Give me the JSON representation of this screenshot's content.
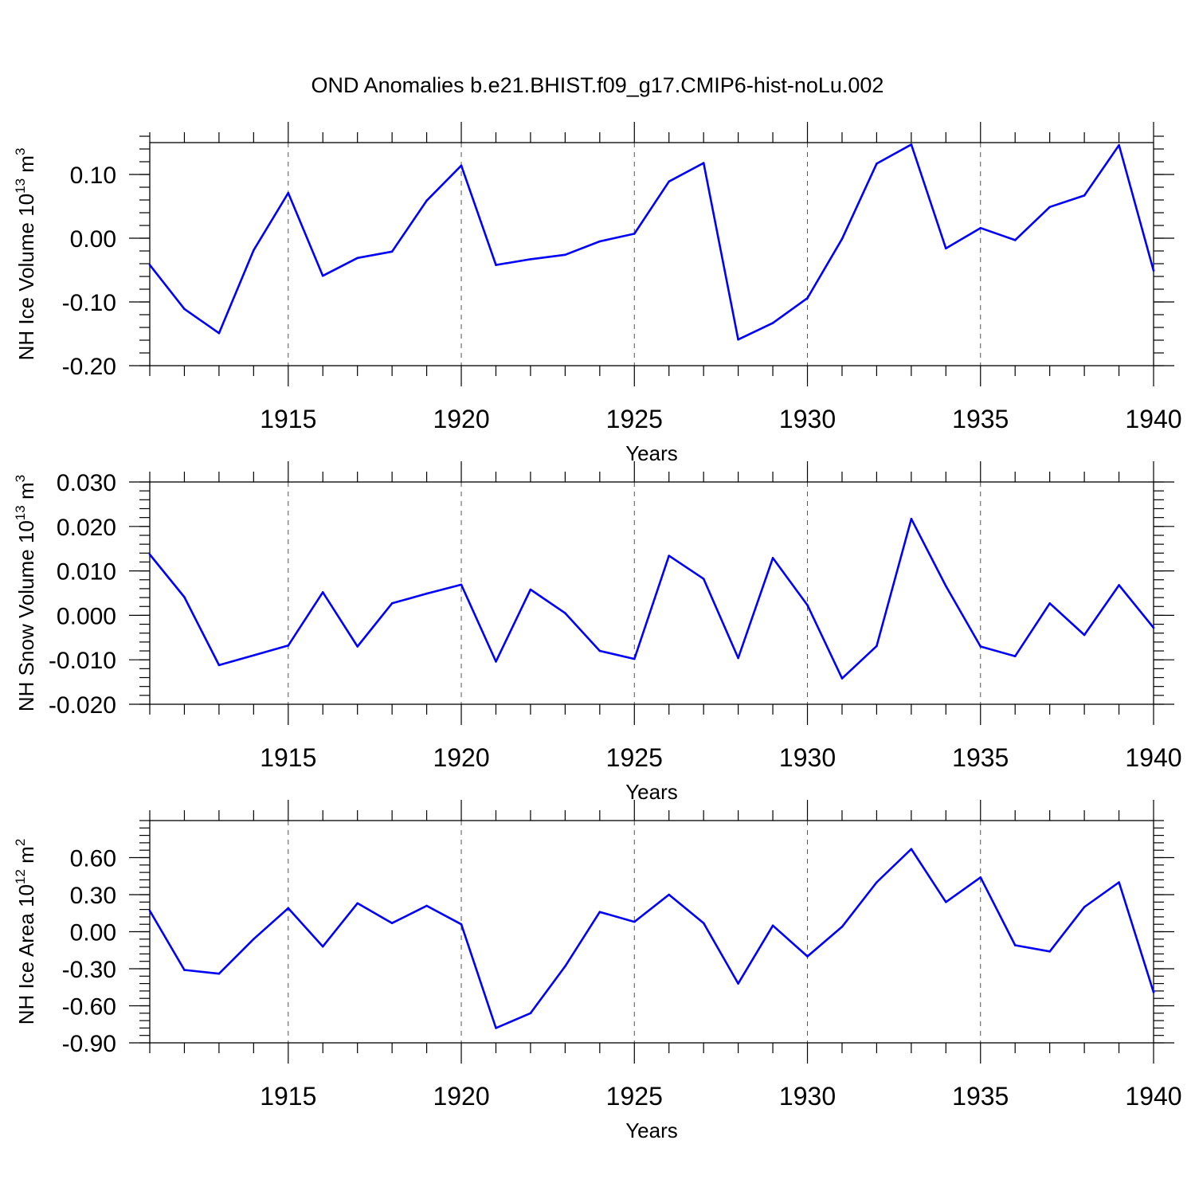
{
  "title": "OND Anomalies b.e21.BHIST.f09_g17.CMIP6-hist-noLu.002",
  "colors": {
    "line": "#0000ff",
    "axis": "#000000",
    "grid": "#555555"
  },
  "chart_data": [
    {
      "type": "line",
      "name": "ice-volume",
      "title": "OND Anomalies b.e21.BHIST.f09_g17.CMIP6-hist-noLu.002",
      "xlabel": "Years",
      "ylabel": {
        "text": "NH Ice Volume 10",
        "sup": "13",
        "unit": " m",
        "unit_sup": "3"
      },
      "xlim": [
        1911,
        1940
      ],
      "ylim": [
        -0.2,
        0.15
      ],
      "x_major_ticks": [
        1915,
        1920,
        1925,
        1930,
        1935,
        1940
      ],
      "x_tick_labels": [
        "1915",
        "1920",
        "1925",
        "1930",
        "1935",
        "1940"
      ],
      "y_ticks": [
        0.1,
        0.0,
        -0.1,
        -0.2
      ],
      "y_tick_labels": [
        "0.10",
        "0.00",
        "-0.10",
        "-0.20"
      ],
      "y_minor_step": 0.02,
      "x": [
        1911,
        1912,
        1913,
        1914,
        1915,
        1916,
        1917,
        1918,
        1919,
        1920,
        1921,
        1922,
        1923,
        1924,
        1925,
        1926,
        1927,
        1928,
        1929,
        1930,
        1931,
        1932,
        1933,
        1934,
        1935,
        1936,
        1937,
        1938,
        1939,
        1940
      ],
      "values": [
        -0.042,
        -0.111,
        -0.149,
        -0.019,
        0.071,
        -0.059,
        -0.031,
        -0.021,
        0.059,
        0.114,
        -0.042,
        -0.033,
        -0.026,
        -0.005,
        0.007,
        0.089,
        0.118,
        -0.159,
        -0.133,
        -0.094,
        -0.001,
        0.117,
        0.147,
        -0.016,
        0.016,
        -0.003,
        0.049,
        0.067,
        0.146,
        -0.051
      ]
    },
    {
      "type": "line",
      "name": "snow-volume",
      "xlabel": "Years",
      "ylabel": {
        "text": "NH Snow Volume 10",
        "sup": "13",
        "unit": " m",
        "unit_sup": "3"
      },
      "xlim": [
        1911,
        1940
      ],
      "ylim": [
        -0.02,
        0.03
      ],
      "x_major_ticks": [
        1915,
        1920,
        1925,
        1930,
        1935,
        1940
      ],
      "x_tick_labels": [
        "1915",
        "1920",
        "1925",
        "1930",
        "1935",
        "1940"
      ],
      "y_ticks": [
        0.03,
        0.02,
        0.01,
        0.0,
        -0.01,
        -0.02
      ],
      "y_tick_labels": [
        "0.030",
        "0.020",
        "0.010",
        "0.000",
        "-0.010",
        "-0.020"
      ],
      "y_minor_step": 0.002,
      "x": [
        1911,
        1912,
        1913,
        1914,
        1915,
        1916,
        1917,
        1918,
        1919,
        1920,
        1921,
        1922,
        1923,
        1924,
        1925,
        1926,
        1927,
        1928,
        1929,
        1930,
        1931,
        1932,
        1933,
        1934,
        1935,
        1936,
        1937,
        1938,
        1939,
        1940
      ],
      "values": [
        0.0137,
        0.0041,
        -0.0112,
        -0.009,
        -0.0068,
        0.0052,
        -0.007,
        0.0027,
        0.0049,
        0.0069,
        -0.0104,
        0.0058,
        0.0005,
        -0.008,
        -0.0098,
        0.0134,
        0.0082,
        -0.0096,
        0.0129,
        0.0023,
        -0.0142,
        -0.0069,
        0.0217,
        0.0066,
        -0.007,
        -0.0092,
        0.0027,
        -0.0044,
        0.0068,
        -0.0028
      ]
    },
    {
      "type": "line",
      "name": "ice-area",
      "xlabel": "Years",
      "ylabel": {
        "text": "NH Ice Area 10",
        "sup": "12",
        "unit": " m",
        "unit_sup": "2"
      },
      "xlim": [
        1911,
        1940
      ],
      "ylim": [
        -0.9,
        0.9
      ],
      "x_major_ticks": [
        1915,
        1920,
        1925,
        1930,
        1935,
        1940
      ],
      "x_tick_labels": [
        "1915",
        "1920",
        "1925",
        "1930",
        "1935",
        "1940"
      ],
      "y_ticks": [
        0.6,
        0.3,
        0.0,
        -0.3,
        -0.6,
        -0.9
      ],
      "y_tick_labels": [
        "0.60",
        "0.30",
        "0.00",
        "-0.30",
        "-0.60",
        "-0.90"
      ],
      "y_minor_step": 0.06,
      "x": [
        1911,
        1912,
        1913,
        1914,
        1915,
        1916,
        1917,
        1918,
        1919,
        1920,
        1921,
        1922,
        1923,
        1924,
        1925,
        1926,
        1927,
        1928,
        1929,
        1930,
        1931,
        1932,
        1933,
        1934,
        1935,
        1936,
        1937,
        1938,
        1939,
        1940
      ],
      "values": [
        0.17,
        -0.31,
        -0.34,
        -0.06,
        0.19,
        -0.12,
        0.23,
        0.07,
        0.21,
        0.06,
        -0.78,
        -0.66,
        -0.28,
        0.16,
        0.08,
        0.3,
        0.07,
        -0.42,
        0.05,
        -0.2,
        0.04,
        0.4,
        0.67,
        0.24,
        0.44,
        -0.11,
        -0.16,
        0.2,
        0.4,
        -0.49
      ]
    }
  ]
}
